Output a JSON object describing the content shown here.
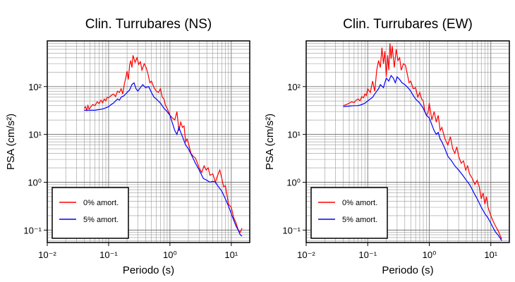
{
  "chart_data": [
    {
      "type": "line",
      "title": "Clin. Turrubares (NS)",
      "xlabel": "Periodo (s)",
      "ylabel": "PSA (cm/s²)",
      "xscale": "log",
      "yscale": "log",
      "xlim": [
        0.01,
        20
      ],
      "ylim": [
        0.055,
        900
      ],
      "xticks": [
        {
          "value": 0.01,
          "label": "10⁻²"
        },
        {
          "value": 0.1,
          "label": "10⁻¹"
        },
        {
          "value": 1,
          "label": "10⁰"
        },
        {
          "value": 10,
          "label": "10¹"
        }
      ],
      "yticks": [
        {
          "value": 0.1,
          "label": "10⁻¹"
        },
        {
          "value": 1,
          "label": "10⁰"
        },
        {
          "value": 10,
          "label": "10¹"
        },
        {
          "value": 100,
          "label": "10²"
        }
      ],
      "grid": true,
      "legend_position": "bottom-left",
      "series": [
        {
          "name": "0% amort.",
          "color": "#ff0000",
          "x": [
            0.04,
            0.042,
            0.044,
            0.046,
            0.048,
            0.05,
            0.055,
            0.06,
            0.065,
            0.07,
            0.075,
            0.08,
            0.085,
            0.09,
            0.095,
            0.1,
            0.11,
            0.12,
            0.13,
            0.14,
            0.15,
            0.16,
            0.17,
            0.18,
            0.19,
            0.2,
            0.21,
            0.22,
            0.23,
            0.24,
            0.25,
            0.27,
            0.29,
            0.31,
            0.33,
            0.35,
            0.38,
            0.41,
            0.44,
            0.47,
            0.5,
            0.55,
            0.6,
            0.65,
            0.7,
            0.75,
            0.8,
            0.85,
            0.9,
            0.95,
            1.0,
            1.1,
            1.2,
            1.3,
            1.4,
            1.5,
            1.6,
            1.7,
            1.8,
            1.9,
            2.0,
            2.2,
            2.4,
            2.6,
            2.8,
            3.0,
            3.3,
            3.6,
            3.9,
            4.2,
            4.5,
            5.0,
            5.5,
            6.0,
            6.5,
            7.0,
            7.5,
            8.0,
            8.5,
            9.0,
            10.0,
            11.0,
            12.0,
            13.0,
            14.0,
            15.0
          ],
          "y": [
            35,
            38,
            32,
            40,
            34,
            36,
            42,
            40,
            48,
            44,
            52,
            46,
            55,
            50,
            60,
            58,
            65,
            70,
            62,
            80,
            75,
            90,
            70,
            110,
            150,
            210,
            140,
            280,
            350,
            250,
            450,
            320,
            400,
            290,
            330,
            220,
            300,
            250,
            180,
            120,
            130,
            95,
            80,
            75,
            90,
            60,
            55,
            40,
            35,
            30,
            25,
            22,
            20,
            30,
            12,
            18,
            14,
            15,
            7,
            8,
            6.5,
            4,
            3.5,
            3.2,
            2.5,
            2.0,
            1.6,
            2.2,
            1.8,
            2.0,
            1.4,
            1.5,
            1.0,
            1.4,
            1.8,
            1.2,
            0.8,
            0.85,
            0.55,
            0.35,
            0.3,
            0.18,
            0.14,
            0.1,
            0.09,
            0.11
          ]
        },
        {
          "name": "5% amort.",
          "color": "#0000ff",
          "x": [
            0.04,
            0.05,
            0.06,
            0.07,
            0.08,
            0.09,
            0.1,
            0.11,
            0.12,
            0.13,
            0.14,
            0.15,
            0.16,
            0.18,
            0.2,
            0.22,
            0.24,
            0.26,
            0.28,
            0.3,
            0.33,
            0.36,
            0.4,
            0.45,
            0.5,
            0.55,
            0.6,
            0.7,
            0.8,
            0.9,
            1.0,
            1.1,
            1.2,
            1.3,
            1.4,
            1.5,
            1.6,
            1.8,
            2.0,
            2.3,
            2.6,
            3.0,
            3.5,
            4.0,
            4.5,
            5.0,
            5.5,
            6.0,
            7.0,
            8.0,
            9.0,
            10.0,
            11.0,
            12.0,
            13.0,
            14.0,
            15.0
          ],
          "y": [
            32,
            32,
            32,
            33,
            34,
            36,
            38,
            42,
            45,
            50,
            55,
            52,
            60,
            65,
            75,
            85,
            110,
            120,
            90,
            80,
            95,
            110,
            95,
            100,
            75,
            60,
            55,
            45,
            35,
            30,
            25,
            17,
            12,
            10,
            14,
            11,
            9,
            6,
            5,
            3.5,
            2.5,
            1.8,
            1.2,
            1.1,
            1.0,
            1.05,
            1.0,
            0.85,
            0.65,
            0.45,
            0.32,
            0.22,
            0.16,
            0.12,
            0.1,
            0.08,
            0.075
          ]
        }
      ]
    },
    {
      "type": "line",
      "title": "Clin. Turrubares (EW)",
      "xlabel": "Periodo (s)",
      "ylabel": "PSA (cm/s²)",
      "xscale": "log",
      "yscale": "log",
      "xlim": [
        0.01,
        20
      ],
      "ylim": [
        0.055,
        900
      ],
      "xticks": [
        {
          "value": 0.01,
          "label": "10⁻²"
        },
        {
          "value": 0.1,
          "label": "10⁻¹"
        },
        {
          "value": 1,
          "label": "10⁰"
        },
        {
          "value": 10,
          "label": "10¹"
        }
      ],
      "yticks": [
        {
          "value": 0.1,
          "label": "10⁻¹"
        },
        {
          "value": 1,
          "label": "10⁰"
        },
        {
          "value": 10,
          "label": "10¹"
        },
        {
          "value": 100,
          "label": "10²"
        }
      ],
      "grid": true,
      "legend_position": "bottom-left",
      "series": [
        {
          "name": "0% amort.",
          "color": "#ff0000",
          "x": [
            0.04,
            0.045,
            0.05,
            0.055,
            0.06,
            0.065,
            0.07,
            0.075,
            0.08,
            0.085,
            0.09,
            0.095,
            0.1,
            0.11,
            0.12,
            0.13,
            0.14,
            0.15,
            0.16,
            0.17,
            0.18,
            0.19,
            0.2,
            0.21,
            0.22,
            0.23,
            0.24,
            0.25,
            0.27,
            0.29,
            0.31,
            0.33,
            0.35,
            0.38,
            0.41,
            0.44,
            0.47,
            0.5,
            0.55,
            0.6,
            0.65,
            0.7,
            0.75,
            0.8,
            0.85,
            0.9,
            0.95,
            1.0,
            1.1,
            1.2,
            1.3,
            1.4,
            1.5,
            1.6,
            1.8,
            2.0,
            2.2,
            2.4,
            2.6,
            2.8,
            3.0,
            3.3,
            3.6,
            3.9,
            4.2,
            4.5,
            5.0,
            5.5,
            6.0,
            6.5,
            7.0,
            7.5,
            8.0,
            8.5,
            9.0,
            10.0,
            11.0,
            12.0,
            13.0,
            14.0,
            15.0
          ],
          "y": [
            40,
            42,
            45,
            48,
            46,
            52,
            55,
            50,
            62,
            58,
            70,
            65,
            90,
            75,
            130,
            80,
            220,
            350,
            250,
            650,
            300,
            550,
            160,
            450,
            220,
            800,
            380,
            700,
            250,
            600,
            350,
            400,
            220,
            300,
            280,
            180,
            120,
            130,
            90,
            95,
            60,
            75,
            55,
            50,
            30,
            25,
            28,
            45,
            20,
            30,
            18,
            25,
            12,
            14,
            8,
            6,
            9,
            5,
            4,
            5.5,
            3.5,
            2.5,
            2.8,
            1.8,
            2.2,
            1.5,
            1.2,
            0.9,
            1.1,
            0.8,
            0.45,
            0.6,
            0.35,
            0.5,
            0.3,
            0.2,
            0.15,
            0.12,
            0.1,
            0.08,
            0.065
          ]
        },
        {
          "name": "5% amort.",
          "color": "#0000ff",
          "x": [
            0.04,
            0.05,
            0.06,
            0.07,
            0.08,
            0.09,
            0.1,
            0.11,
            0.12,
            0.13,
            0.14,
            0.15,
            0.16,
            0.18,
            0.2,
            0.22,
            0.24,
            0.26,
            0.28,
            0.3,
            0.33,
            0.36,
            0.4,
            0.45,
            0.5,
            0.55,
            0.6,
            0.7,
            0.8,
            0.9,
            1.0,
            1.1,
            1.2,
            1.3,
            1.4,
            1.5,
            1.6,
            1.8,
            2.0,
            2.3,
            2.6,
            3.0,
            3.5,
            4.0,
            4.5,
            5.0,
            5.5,
            6.0,
            7.0,
            8.0,
            9.0,
            10.0,
            11.0,
            12.0,
            13.0,
            14.0,
            15.0
          ],
          "y": [
            38,
            39,
            40,
            40,
            42,
            45,
            50,
            55,
            60,
            70,
            80,
            90,
            110,
            95,
            150,
            130,
            170,
            150,
            120,
            160,
            140,
            120,
            110,
            95,
            80,
            65,
            55,
            45,
            35,
            25,
            22,
            16,
            12,
            10,
            11,
            8,
            7,
            5,
            3.5,
            2.8,
            2.2,
            1.8,
            1.4,
            1.1,
            0.9,
            0.7,
            0.55,
            0.45,
            0.3,
            0.22,
            0.18,
            0.14,
            0.11,
            0.09,
            0.08,
            0.07,
            0.06
          ]
        }
      ]
    }
  ]
}
